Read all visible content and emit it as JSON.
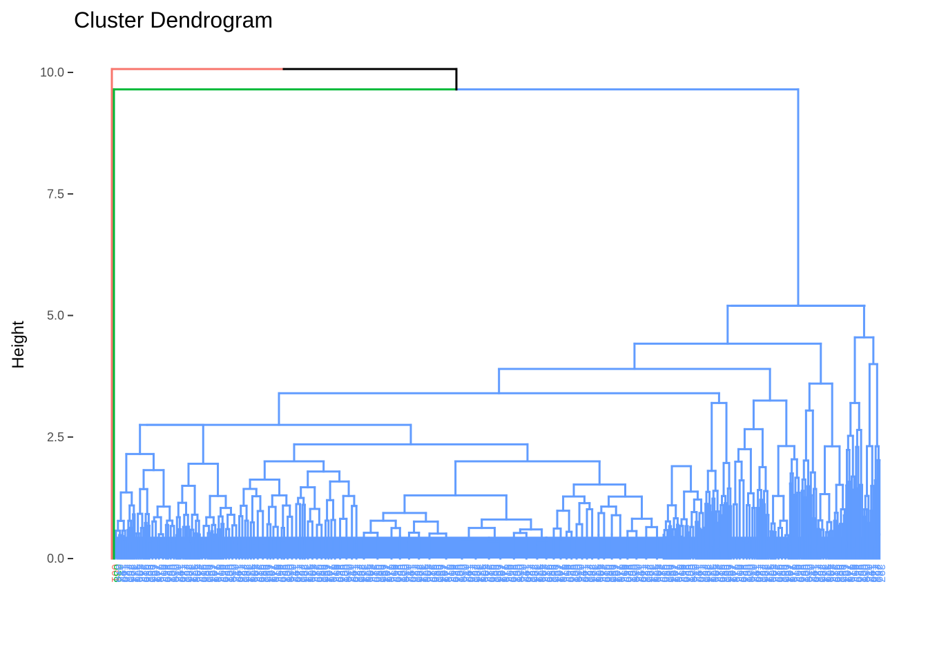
{
  "chart_data": {
    "type": "dendrogram",
    "title": "Cluster Dendrogram",
    "xlabel": "",
    "ylabel": "Height",
    "ylim": [
      0,
      10
    ],
    "y_ticks": [
      0.0,
      2.5,
      5.0,
      7.5,
      10.0
    ],
    "y_tick_labels": [
      "0.0",
      "2.5",
      "5.0",
      "7.5",
      "10.0"
    ],
    "grid": false,
    "leaf_count": 360,
    "colors": {
      "root": "#000000",
      "red": "#F8766D",
      "green": "#00BA38",
      "blue": "#619CFF"
    },
    "clusters": [
      {
        "color": "red",
        "leaves": 1
      },
      {
        "color": "green",
        "leaves": 1
      },
      {
        "color": "blue",
        "leaves": 358
      }
    ],
    "top_merges": [
      {
        "height": 10.07,
        "members": [
          "red",
          "green+blue"
        ]
      },
      {
        "height": 9.65,
        "members": [
          "green",
          "blue"
        ]
      },
      {
        "height": 5.2,
        "members": [
          "blue-left",
          "blue-right"
        ]
      }
    ],
    "blue_subtree_merge_heights": [
      5.2,
      4.55,
      4.42,
      4.18,
      3.9,
      3.9,
      3.45,
      3.4,
      3.25,
      2.75,
      2.35,
      2.2,
      1.95,
      1.9,
      1.65
    ]
  }
}
